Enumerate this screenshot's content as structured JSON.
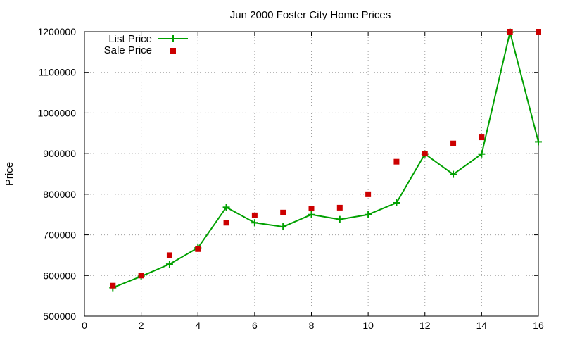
{
  "chart_data": {
    "type": "line",
    "title": "Jun 2000 Foster City Home Prices",
    "xlabel": "",
    "ylabel": "Price",
    "xlim": [
      0,
      16
    ],
    "ylim": [
      500000,
      1200000
    ],
    "xticks": [
      0,
      2,
      4,
      6,
      8,
      10,
      12,
      14,
      16
    ],
    "yticks": [
      500000,
      600000,
      700000,
      800000,
      900000,
      1000000,
      1100000,
      1200000
    ],
    "grid": true,
    "legend_position": "top-left",
    "series": [
      {
        "name": "List Price",
        "style": "line-with-plus-markers",
        "color": "#00a000",
        "x": [
          1,
          2,
          3,
          4,
          5,
          6,
          7,
          8,
          9,
          10,
          11,
          12,
          13,
          14,
          15,
          16
        ],
        "y": [
          570000,
          598000,
          628000,
          668000,
          768000,
          730000,
          720000,
          750000,
          738000,
          750000,
          779000,
          899000,
          849000,
          899000,
          1199000,
          929000
        ]
      },
      {
        "name": "Sale Price",
        "style": "square-points",
        "color": "#cc0000",
        "x": [
          1,
          2,
          3,
          4,
          5,
          6,
          7,
          8,
          9,
          10,
          11,
          12,
          13,
          14,
          15,
          16
        ],
        "y": [
          575000,
          600000,
          650000,
          665000,
          730000,
          748000,
          755000,
          765000,
          767000,
          800000,
          880000,
          900000,
          925000,
          940000,
          1200000,
          1200000
        ]
      }
    ]
  }
}
